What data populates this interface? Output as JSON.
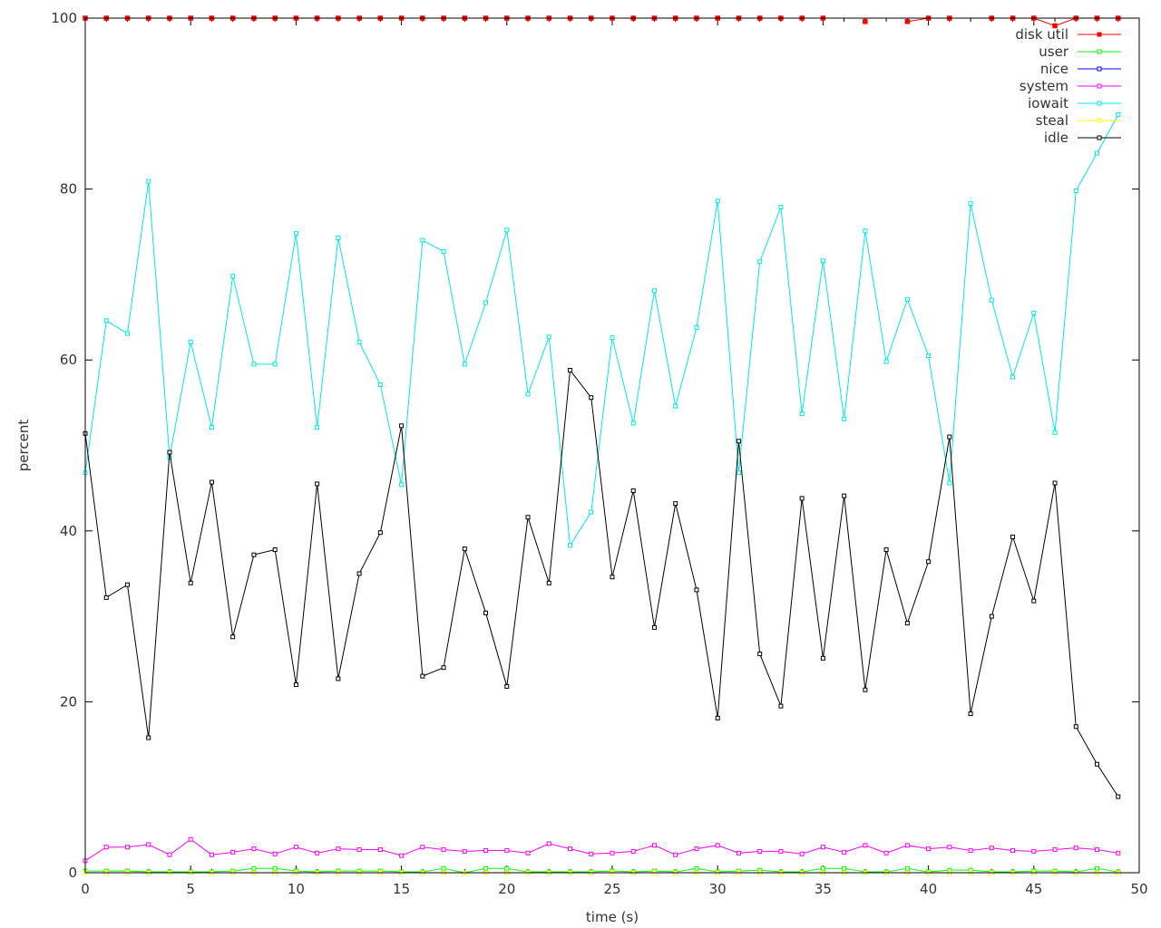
{
  "chart_data": {
    "type": "line",
    "title": "",
    "xlabel": "time (s)",
    "ylabel": "percent",
    "xlim": [
      0,
      50
    ],
    "ylim": [
      0,
      100
    ],
    "xticks": [
      0,
      5,
      10,
      15,
      20,
      25,
      30,
      35,
      40,
      45,
      50
    ],
    "yticks": [
      0,
      20,
      40,
      60,
      80,
      100
    ],
    "grid": false,
    "legend_position": "top-right",
    "x": [
      0,
      1,
      2,
      3,
      4,
      5,
      6,
      7,
      8,
      9,
      10,
      11,
      12,
      13,
      14,
      15,
      16,
      17,
      18,
      19,
      20,
      21,
      22,
      23,
      24,
      25,
      26,
      27,
      28,
      29,
      30,
      31,
      32,
      33,
      34,
      35,
      36,
      37,
      38,
      39,
      40,
      41,
      42,
      43,
      44,
      45,
      46,
      47,
      48,
      49
    ],
    "series": [
      {
        "name": "disk util",
        "color": "#ff0000",
        "marker": "filled",
        "values": [
          100,
          100,
          100,
          100,
          100,
          100,
          100,
          100,
          100,
          100,
          100,
          100,
          100,
          100,
          100,
          100,
          100,
          100,
          100,
          100,
          100,
          100,
          100,
          100,
          100,
          100,
          100,
          100,
          100,
          100,
          100,
          100,
          100,
          100,
          100,
          100,
          null,
          99.6,
          null,
          99.6,
          100,
          100,
          null,
          100,
          100,
          100,
          99.1,
          100,
          100,
          100
        ]
      },
      {
        "name": "user",
        "color": "#00ff00",
        "marker": "open",
        "values": [
          0.2,
          0.2,
          0.2,
          0.1,
          0.1,
          0.1,
          0.1,
          0.2,
          0.5,
          0.5,
          0.2,
          0.1,
          0.2,
          0.2,
          0.2,
          0.1,
          0.1,
          0.5,
          0,
          0.5,
          0.5,
          0.1,
          0.1,
          0.1,
          0.1,
          0.2,
          0.1,
          0.2,
          0.1,
          0.5,
          0.1,
          0.2,
          0.3,
          0.1,
          0.1,
          0.5,
          0.5,
          0.1,
          0.1,
          0.5,
          0.1,
          0.3,
          0.3,
          0.1,
          0.1,
          0.2,
          0.2,
          0.1,
          0.5,
          0.1
        ]
      },
      {
        "name": "nice",
        "color": "#0000ff",
        "marker": "open",
        "values": [
          0,
          0,
          0,
          0,
          0,
          0,
          0,
          0,
          0,
          0,
          0,
          0,
          0,
          0,
          0,
          0,
          0,
          0,
          0,
          0,
          0,
          0,
          0,
          0,
          0,
          0,
          0,
          0,
          0,
          0,
          0,
          0,
          0,
          0,
          0,
          0,
          0,
          0,
          0,
          0,
          0,
          0,
          0,
          0,
          0,
          0,
          0,
          0,
          0,
          0
        ]
      },
      {
        "name": "system",
        "color": "#ff00ff",
        "marker": "open",
        "values": [
          1.4,
          3,
          3,
          3.3,
          2.1,
          3.9,
          2.1,
          2.4,
          2.8,
          2.2,
          3,
          2.3,
          2.8,
          2.7,
          2.7,
          2,
          3,
          2.7,
          2.5,
          2.6,
          2.6,
          2.3,
          3.4,
          2.8,
          2.2,
          2.3,
          2.5,
          3.2,
          2.1,
          2.8,
          3.2,
          2.3,
          2.5,
          2.5,
          2.2,
          3,
          2.4,
          3.2,
          2.3,
          3.2,
          2.8,
          3,
          2.6,
          2.9,
          2.6,
          2.5,
          2.7,
          2.9,
          2.7,
          2.3
        ]
      },
      {
        "name": "iowait",
        "color": "#00e8e8",
        "marker": "open",
        "values": [
          46.8,
          64.6,
          63.1,
          80.9,
          48.6,
          62.1,
          52.1,
          69.8,
          59.5,
          59.5,
          74.8,
          52.1,
          74.3,
          62.1,
          57.1,
          45.4,
          74,
          72.7,
          59.5,
          66.7,
          75.2,
          56,
          62.7,
          38.3,
          42.2,
          62.6,
          52.6,
          68.1,
          54.6,
          63.8,
          78.6,
          46.8,
          71.5,
          77.9,
          53.7,
          71.6,
          53.1,
          75.1,
          59.8,
          67.1,
          60.5,
          45.6,
          78.3,
          67,
          58,
          65.5,
          51.5,
          79.8,
          84.2,
          88.7
        ]
      },
      {
        "name": "steal",
        "color": "#ffff00",
        "marker": "open",
        "values": [
          0,
          0,
          0,
          0,
          0,
          0,
          0,
          0,
          0,
          0,
          0,
          0,
          0,
          0,
          0,
          0,
          0,
          0,
          0,
          0,
          0,
          0,
          0,
          0,
          0,
          0,
          0,
          0,
          0,
          0,
          0,
          0,
          0,
          0,
          0,
          0,
          0,
          0,
          0,
          0,
          0,
          0,
          0,
          0,
          0,
          0,
          0,
          0,
          0,
          0
        ]
      },
      {
        "name": "idle",
        "color": "#000000",
        "marker": "open",
        "values": [
          51.4,
          32.2,
          33.7,
          15.8,
          49.2,
          33.9,
          45.7,
          27.6,
          37.2,
          37.8,
          22,
          45.5,
          22.7,
          35,
          39.8,
          52.3,
          23,
          24,
          37.9,
          30.4,
          21.8,
          41.6,
          33.9,
          58.8,
          55.6,
          34.6,
          44.7,
          28.7,
          43.2,
          33.1,
          18.1,
          50.5,
          25.6,
          19.5,
          43.8,
          25.1,
          44.1,
          21.4,
          37.8,
          29.2,
          36.4,
          51,
          18.6,
          30,
          39.3,
          31.8,
          45.6,
          17.1,
          12.7,
          8.9
        ]
      }
    ]
  }
}
